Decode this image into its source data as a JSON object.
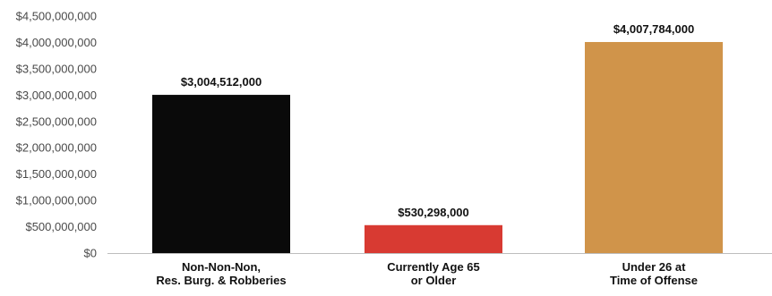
{
  "chart_data": {
    "type": "bar",
    "categories": [
      [
        "Non-Non-Non,",
        "Res. Burg. & Robberies"
      ],
      [
        "Currently Age 65",
        "or Older"
      ],
      [
        "Under 26 at",
        "Time of Offense"
      ]
    ],
    "values": [
      3004512000,
      530298000,
      4007784000
    ],
    "data_labels": [
      "$3,004,512,000",
      "$530,298,000",
      "$4,007,784,000"
    ],
    "bar_colors": [
      "#0a0a0a",
      "#d83a32",
      "#d0944a"
    ],
    "ylim": [
      0,
      4500000000
    ],
    "y_ticks": [
      0,
      500000000,
      1000000000,
      1500000000,
      2000000000,
      2500000000,
      3000000000,
      3500000000,
      4000000000,
      4500000000
    ],
    "y_tick_labels": [
      "$0",
      "$500,000,000",
      "$1,000,000,000",
      "$1,500,000,000",
      "$2,000,000,000",
      "$2,500,000,000",
      "$3,000,000,000",
      "$3,500,000,000",
      "$4,000,000,000",
      "$4,500,000,000"
    ],
    "grid": false,
    "legend": "none",
    "title": "",
    "xlabel": "",
    "ylabel": ""
  }
}
